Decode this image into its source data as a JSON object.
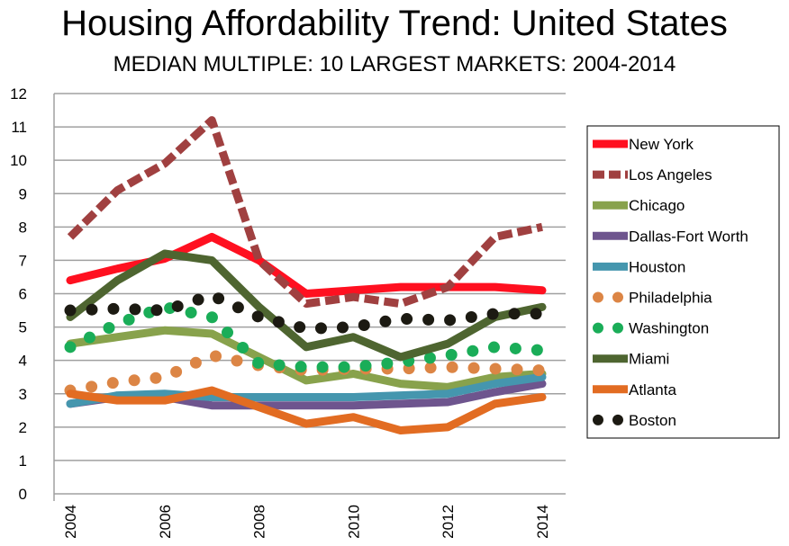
{
  "title": "Housing Affordability Trend: United States",
  "subtitle": "MEDIAN  MULTIPLE: 10 LARGEST MARKETS: 2004-2014",
  "chart_data": {
    "type": "line",
    "title": "Housing Affordability Trend: United States",
    "subtitle": "MEDIAN  MULTIPLE: 10 LARGEST MARKETS: 2004-2014",
    "x": [
      2004,
      2005,
      2006,
      2007,
      2008,
      2009,
      2010,
      2011,
      2012,
      2013,
      2014
    ],
    "x_tick_labels": [
      "2004",
      "2006",
      "2008",
      "2010",
      "2012",
      "2014"
    ],
    "y_tick_labels": [
      "0",
      "1",
      "2",
      "3",
      "4",
      "5",
      "6",
      "7",
      "8",
      "9",
      "10",
      "11",
      "12"
    ],
    "ylim": [
      0,
      12
    ],
    "grid": true,
    "legend_position": "right",
    "series": [
      {
        "name": "New York",
        "color": "#ff1020",
        "style": "solid",
        "values": [
          6.4,
          6.75,
          7.05,
          7.7,
          7.0,
          6.0,
          6.1,
          6.2,
          6.2,
          6.2,
          6.1
        ]
      },
      {
        "name": "Los Angeles",
        "color": "#a04040",
        "style": "dashed",
        "values": [
          7.7,
          9.1,
          9.9,
          11.2,
          7.0,
          5.7,
          5.9,
          5.7,
          6.2,
          7.7,
          8.0
        ]
      },
      {
        "name": "Chicago",
        "color": "#88a24c",
        "style": "solid",
        "values": [
          4.5,
          4.7,
          4.9,
          4.8,
          4.1,
          3.4,
          3.6,
          3.3,
          3.2,
          3.5,
          3.6
        ]
      },
      {
        "name": "Dallas-Fort Worth",
        "color": "#6e558e",
        "style": "solid",
        "values": [
          2.7,
          2.9,
          2.9,
          2.65,
          2.65,
          2.65,
          2.65,
          2.7,
          2.75,
          3.05,
          3.3
        ]
      },
      {
        "name": "Houston",
        "color": "#4596ae",
        "style": "solid",
        "values": [
          2.7,
          2.95,
          3.0,
          2.9,
          2.9,
          2.9,
          2.9,
          2.95,
          3.0,
          3.3,
          3.5
        ]
      },
      {
        "name": "Philadelphia",
        "color": "#dc8545",
        "style": "dotted",
        "values": [
          3.1,
          3.35,
          3.5,
          4.15,
          3.85,
          3.7,
          3.75,
          3.75,
          3.8,
          3.75,
          3.7
        ]
      },
      {
        "name": "Washington",
        "color": "#1aad58",
        "style": "dotted",
        "values": [
          4.4,
          5.1,
          5.6,
          5.3,
          3.9,
          3.8,
          3.8,
          3.95,
          4.15,
          4.4,
          4.3
        ]
      },
      {
        "name": "Miami",
        "color": "#4e6530",
        "style": "solid",
        "values": [
          5.3,
          6.4,
          7.2,
          7.0,
          5.6,
          4.4,
          4.7,
          4.1,
          4.5,
          5.3,
          5.6
        ]
      },
      {
        "name": "Atlanta",
        "color": "#e26c22",
        "style": "solid",
        "values": [
          3.0,
          2.8,
          2.8,
          3.1,
          2.6,
          2.1,
          2.3,
          1.9,
          2.0,
          2.7,
          2.9
        ]
      },
      {
        "name": "Boston",
        "color": "#1c1a12",
        "style": "dotted",
        "values": [
          5.5,
          5.55,
          5.5,
          5.95,
          5.3,
          4.95,
          5.0,
          5.25,
          5.2,
          5.4,
          5.4
        ]
      }
    ]
  }
}
